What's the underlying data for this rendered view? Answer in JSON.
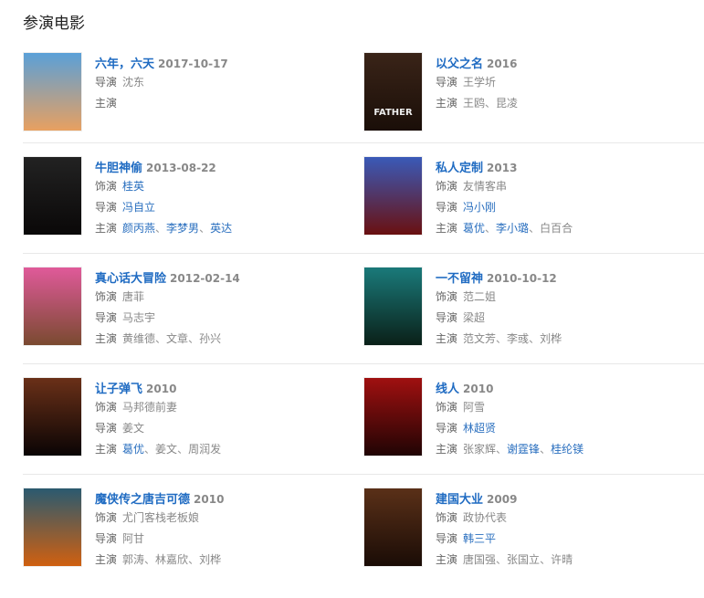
{
  "heading": "参演电影",
  "labels": {
    "role": "饰演",
    "director": "导演",
    "cast": "主演"
  },
  "link_color": "#1f6bc2",
  "movies": [
    {
      "title": "六年，六天",
      "date": "2017-10-17",
      "director": [
        {
          "name": "沈东",
          "link": false
        }
      ],
      "cast": [],
      "poster_colors": [
        "#5aa0d8",
        "#e8a060"
      ],
      "poster_text": ""
    },
    {
      "title": "以父之名",
      "date": "2016",
      "director": [
        {
          "name": "王学圻",
          "link": false
        }
      ],
      "cast": [
        {
          "name": "王鸥",
          "link": false
        },
        {
          "name": "昆凌",
          "link": false
        }
      ],
      "poster_colors": [
        "#3a2418",
        "#1a0e08"
      ],
      "poster_text": "FATHER"
    },
    {
      "title": "牛胆神偷",
      "date": "2013-08-22",
      "role": [
        {
          "name": "桂英",
          "link": true
        }
      ],
      "director": [
        {
          "name": "冯自立",
          "link": true
        }
      ],
      "cast": [
        {
          "name": "颜丙燕",
          "link": true
        },
        {
          "name": "李梦男",
          "link": true
        },
        {
          "name": "英达",
          "link": true
        }
      ],
      "poster_colors": [
        "#222",
        "#0a0808"
      ],
      "poster_text": ""
    },
    {
      "title": "私人定制",
      "date": "2013",
      "role": [
        {
          "name": "友情客串",
          "link": false
        }
      ],
      "director": [
        {
          "name": "冯小刚",
          "link": true
        }
      ],
      "cast": [
        {
          "name": "葛优",
          "link": true
        },
        {
          "name": "李小璐",
          "link": true
        },
        {
          "name": "白百合",
          "link": false
        }
      ],
      "poster_colors": [
        "#3a5ab8",
        "#6a1010"
      ],
      "poster_text": ""
    },
    {
      "title": "真心话大冒险",
      "date": "2012-02-14",
      "role": [
        {
          "name": "唐菲",
          "link": false
        }
      ],
      "director": [
        {
          "name": "马志宇",
          "link": false
        }
      ],
      "cast": [
        {
          "name": "黄维德",
          "link": false
        },
        {
          "name": "文章",
          "link": false
        },
        {
          "name": "孙兴",
          "link": false
        }
      ],
      "poster_colors": [
        "#e05a9a",
        "#7a4a30"
      ],
      "poster_text": ""
    },
    {
      "title": "一不留神",
      "date": "2010-10-12",
      "role": [
        {
          "name": "范二姐",
          "link": false
        }
      ],
      "director": [
        {
          "name": "梁超",
          "link": false
        }
      ],
      "cast": [
        {
          "name": "范文芳",
          "link": false
        },
        {
          "name": "李彧",
          "link": false
        },
        {
          "name": "刘桦",
          "link": false
        }
      ],
      "poster_colors": [
        "#1a7a7a",
        "#0a2018"
      ],
      "poster_text": ""
    },
    {
      "title": "让子弹飞",
      "date": "2010",
      "role": [
        {
          "name": "马邦德前妻",
          "link": false
        }
      ],
      "director": [
        {
          "name": "姜文",
          "link": false
        }
      ],
      "cast": [
        {
          "name": "葛优",
          "link": true
        },
        {
          "name": "姜文",
          "link": false
        },
        {
          "name": "周润发",
          "link": false
        }
      ],
      "poster_colors": [
        "#6a3018",
        "#0a0404"
      ],
      "poster_text": ""
    },
    {
      "title": "线人",
      "date": "2010",
      "role": [
        {
          "name": "阿雪",
          "link": false
        }
      ],
      "director": [
        {
          "name": "林超贤",
          "link": true
        }
      ],
      "cast": [
        {
          "name": "张家辉",
          "link": false
        },
        {
          "name": "谢霆锋",
          "link": true
        },
        {
          "name": "桂纶镁",
          "link": true
        }
      ],
      "poster_colors": [
        "#a01010",
        "#200404"
      ],
      "poster_text": ""
    },
    {
      "title": "魔侠传之唐吉可德",
      "date": "2010",
      "role": [
        {
          "name": "尤门客栈老板娘",
          "link": false
        }
      ],
      "director": [
        {
          "name": "阿甘",
          "link": false
        }
      ],
      "cast": [
        {
          "name": "郭涛",
          "link": false
        },
        {
          "name": "林嘉欣",
          "link": false
        },
        {
          "name": "刘桦",
          "link": false
        }
      ],
      "poster_colors": [
        "#2a5a70",
        "#d06010"
      ],
      "poster_text": ""
    },
    {
      "title": "建国大业",
      "date": "2009",
      "role": [
        {
          "name": "政协代表",
          "link": false
        }
      ],
      "director": [
        {
          "name": "韩三平",
          "link": true
        }
      ],
      "cast": [
        {
          "name": "唐国强",
          "link": false
        },
        {
          "name": "张国立",
          "link": false
        },
        {
          "name": "许晴",
          "link": false
        }
      ],
      "poster_colors": [
        "#5a3018",
        "#1a0c06"
      ],
      "poster_text": ""
    }
  ]
}
